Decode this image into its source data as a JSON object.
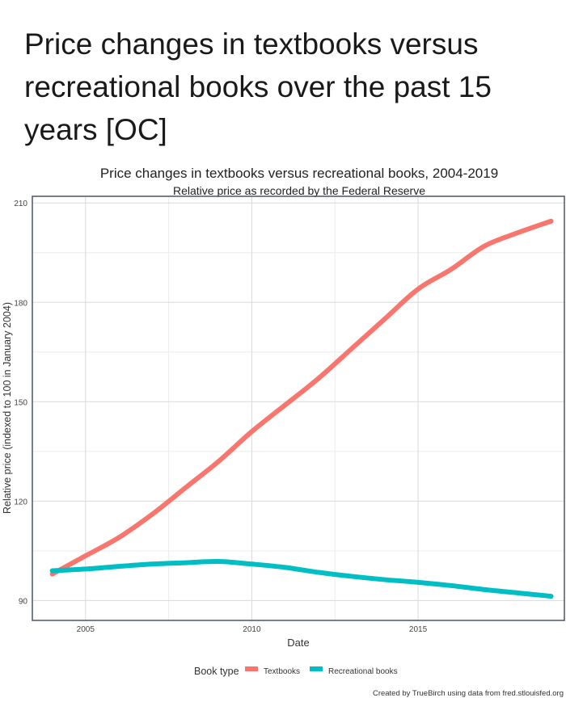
{
  "post_title": "Price changes in textbooks versus recreational books over the past 15 years [OC]",
  "chart_data": {
    "type": "line",
    "title": "Price changes in textbooks versus recreational books, 2004-2019",
    "subtitle": "Relative price as recorded by the Federal Reserve",
    "xlabel": "Date",
    "ylabel": "Relative price (indexed to 100 in January 2004)",
    "xlim": [
      2003.4,
      2019.4
    ],
    "ylim": [
      84,
      212
    ],
    "xticks": [
      2005,
      2010,
      2015
    ],
    "yticks": [
      90,
      120,
      150,
      180,
      210
    ],
    "grid": true,
    "legend": {
      "title": "Book type",
      "placement": "bottom"
    },
    "x": [
      2004,
      2005,
      2006,
      2007,
      2008,
      2009,
      2010,
      2011,
      2012,
      2013,
      2014,
      2015,
      2016,
      2017,
      2018,
      2019
    ],
    "series": [
      {
        "name": "Textbooks",
        "color": "#F8766D",
        "values": [
          98,
          103.5,
          109,
          116,
          124,
          132,
          141,
          149,
          157,
          166,
          175,
          184,
          190,
          197,
          201,
          204.5
        ]
      },
      {
        "name": "Recreational books",
        "color": "#00BFC4",
        "values": [
          99,
          99.5,
          100.3,
          101,
          101.4,
          101.8,
          101,
          100,
          98.5,
          97.3,
          96.3,
          95.5,
          94.5,
          93.3,
          92.3,
          91.3
        ]
      }
    ],
    "caption": "Created by TrueBirch using data from fred.stlouisfed.org"
  }
}
